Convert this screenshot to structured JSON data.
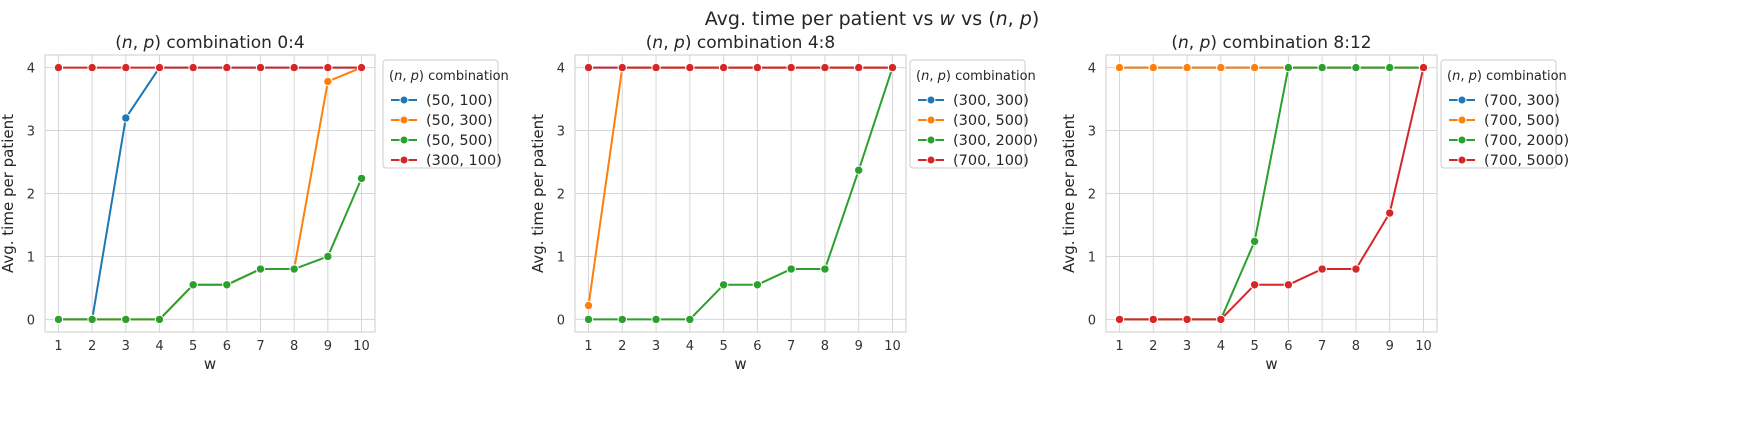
{
  "suptitle_parts": [
    "Avg. time per patient vs ",
    "w",
    " vs (",
    "n",
    ", ",
    "p",
    ")"
  ],
  "colors": [
    "#1f77b4",
    "#ff7f0e",
    "#2ca02c",
    "#d62728"
  ],
  "chart_data": [
    {
      "type": "line",
      "title": "(n, p) combination 0:4",
      "title_parts": [
        "(",
        "n",
        ", ",
        "p",
        ") combination 0:4"
      ],
      "xlabel": "w",
      "ylabel": "Avg. time per patient",
      "x": [
        1,
        2,
        3,
        4,
        5,
        6,
        7,
        8,
        9,
        10
      ],
      "xticks": [
        "1",
        "2",
        "3",
        "4",
        "5",
        "6",
        "7",
        "8",
        "9",
        "10"
      ],
      "yticks": [
        "0",
        "1",
        "2",
        "3",
        "4"
      ],
      "xlim": [
        0.6,
        10.4
      ],
      "ylim": [
        -0.2,
        4.2
      ],
      "grid": true,
      "legend_title_parts": [
        "(",
        "n",
        ", ",
        "p",
        ") combination"
      ],
      "legend_position": "outside right",
      "series": [
        {
          "name": "(50, 100)",
          "values": [
            0,
            0,
            3.2,
            4,
            4,
            4,
            4,
            4,
            4,
            4
          ]
        },
        {
          "name": "(50, 300)",
          "values": [
            0,
            0,
            0,
            0,
            0.55,
            0.55,
            0.8,
            0.8,
            3.78,
            4
          ]
        },
        {
          "name": "(50, 500)",
          "values": [
            0,
            0,
            0,
            0,
            0.55,
            0.55,
            0.8,
            0.8,
            1.0,
            2.24
          ]
        },
        {
          "name": "(300, 100)",
          "values": [
            4,
            4,
            4,
            4,
            4,
            4,
            4,
            4,
            4,
            4
          ]
        }
      ]
    },
    {
      "type": "line",
      "title": "(n, p) combination 4:8",
      "title_parts": [
        "(",
        "n",
        ", ",
        "p",
        ") combination 4:8"
      ],
      "xlabel": "w",
      "ylabel": "Avg. time per patient",
      "x": [
        1,
        2,
        3,
        4,
        5,
        6,
        7,
        8,
        9,
        10
      ],
      "xticks": [
        "1",
        "2",
        "3",
        "4",
        "5",
        "6",
        "7",
        "8",
        "9",
        "10"
      ],
      "yticks": [
        "0",
        "1",
        "2",
        "3",
        "4"
      ],
      "xlim": [
        0.6,
        10.4
      ],
      "ylim": [
        -0.2,
        4.2
      ],
      "grid": true,
      "legend_title_parts": [
        "(",
        "n",
        ", ",
        "p",
        ") combination"
      ],
      "legend_position": "outside right",
      "series": [
        {
          "name": "(300, 300)",
          "values": [
            4,
            4,
            4,
            4,
            4,
            4,
            4,
            4,
            4,
            4
          ]
        },
        {
          "name": "(300, 500)",
          "values": [
            0.22,
            4,
            4,
            4,
            4,
            4,
            4,
            4,
            4,
            4
          ]
        },
        {
          "name": "(300, 2000)",
          "values": [
            0,
            0,
            0,
            0,
            0.55,
            0.55,
            0.8,
            0.8,
            2.37,
            4
          ]
        },
        {
          "name": "(700, 100)",
          "values": [
            4,
            4,
            4,
            4,
            4,
            4,
            4,
            4,
            4,
            4
          ]
        }
      ]
    },
    {
      "type": "line",
      "title": "(n, p) combination 8:12",
      "title_parts": [
        "(",
        "n",
        ", ",
        "p",
        ") combination 8:12"
      ],
      "xlabel": "w",
      "ylabel": "Avg. time per patient",
      "x": [
        1,
        2,
        3,
        4,
        5,
        6,
        7,
        8,
        9,
        10
      ],
      "xticks": [
        "1",
        "2",
        "3",
        "4",
        "5",
        "6",
        "7",
        "8",
        "9",
        "10"
      ],
      "yticks": [
        "0",
        "1",
        "2",
        "3",
        "4"
      ],
      "xlim": [
        0.6,
        10.4
      ],
      "ylim": [
        -0.2,
        4.2
      ],
      "grid": true,
      "legend_title_parts": [
        "(",
        "n",
        ", ",
        "p",
        ") combination"
      ],
      "legend_position": "outside right",
      "series": [
        {
          "name": "(700, 300)",
          "values": [
            4,
            4,
            4,
            4,
            4,
            4,
            4,
            4,
            4,
            4
          ]
        },
        {
          "name": "(700, 500)",
          "values": [
            4,
            4,
            4,
            4,
            4,
            4,
            4,
            4,
            4,
            4
          ]
        },
        {
          "name": "(700, 2000)",
          "values": [
            0,
            0,
            0,
            0,
            1.24,
            4,
            4,
            4,
            4,
            4
          ]
        },
        {
          "name": "(700, 5000)",
          "values": [
            0,
            0,
            0,
            0,
            0.55,
            0.55,
            0.8,
            0.8,
            1.69,
            4
          ]
        }
      ]
    }
  ]
}
